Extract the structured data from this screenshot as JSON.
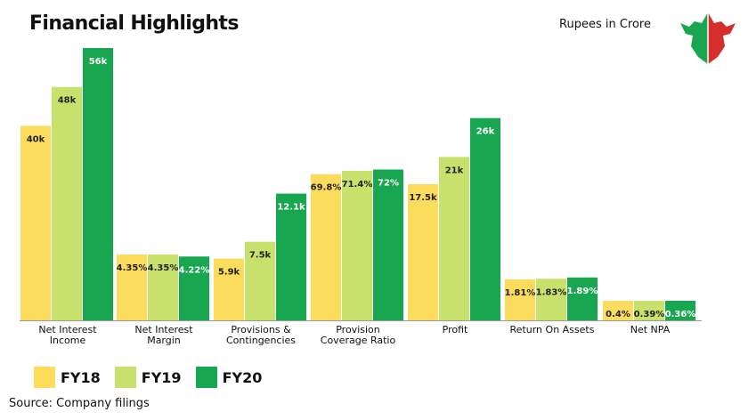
{
  "header": {
    "title": "Financial Highlights",
    "unit_note": "Rupees in Crore"
  },
  "footer": {
    "source": "Source: Company filings"
  },
  "colors": {
    "FY18": "#FCDC5C",
    "FY19": "#C8E06C",
    "FY20": "#19A650"
  },
  "chart_data": {
    "type": "bar",
    "title": "Financial Highlights",
    "xlabel": "",
    "ylabel": "",
    "grid": false,
    "legend_position": "bottom-left",
    "categories": [
      [
        "Net Interest",
        "Income"
      ],
      [
        "Net Interest",
        "Margin"
      ],
      [
        "Provisions &",
        "Contingencies"
      ],
      [
        "Provision",
        "Coverage Ratio"
      ],
      [
        "Profit"
      ],
      [
        "Return On Assets"
      ],
      [
        "Net NPA"
      ]
    ],
    "series": [
      {
        "name": "FY18",
        "values": [
          40000,
          4.35,
          5900,
          69.8,
          17500,
          1.81,
          0.4
        ],
        "labels": [
          "40k",
          "4.35%",
          "5.9k",
          "69.8%",
          "17.5k",
          "1.81%",
          "0.4%"
        ]
      },
      {
        "name": "FY19",
        "values": [
          48000,
          4.35,
          7500,
          71.4,
          21000,
          1.83,
          0.39
        ],
        "labels": [
          "48k",
          "4.35%",
          "7.5k",
          "71.4%",
          "21k",
          "1.83%",
          "0.39%"
        ]
      },
      {
        "name": "FY20",
        "values": [
          56000,
          4.22,
          12100,
          72,
          26000,
          1.89,
          0.36
        ],
        "labels": [
          "56k",
          "4.22%",
          "12.1k",
          "72%",
          "26k",
          "1.89%",
          "0.36%"
        ]
      }
    ],
    "category_scale_max": [
      56000,
      18,
      26000,
      130,
      35000,
      12,
      10
    ]
  }
}
